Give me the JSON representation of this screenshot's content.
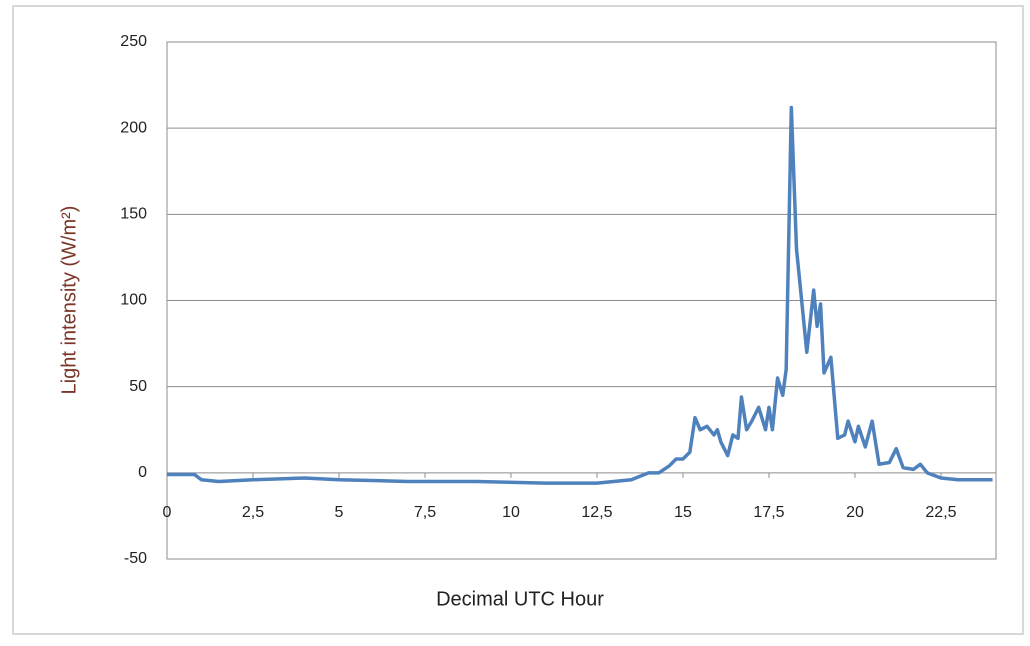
{
  "chart_data": {
    "type": "line",
    "x_label": "Decimal UTC Hour",
    "y_label": "Light intensity (W/m²)",
    "xlim": [
      0,
      24.1
    ],
    "xticks": [
      0,
      {
        "value": 2.5,
        "label": "2,5"
      },
      5,
      {
        "value": 7.5,
        "label": "7,5"
      },
      10,
      {
        "value": 12.5,
        "label": "12,5"
      },
      15,
      {
        "value": 17.5,
        "label": "17,5"
      },
      20,
      {
        "value": 22.5,
        "label": "22,5"
      }
    ],
    "ylim": [
      -50,
      250
    ],
    "yticks": [
      -50,
      0,
      50,
      100,
      150,
      200,
      250
    ],
    "grid": true,
    "series": [
      {
        "color": "#4f81bd",
        "x": [
          0,
          0.5,
          0.8,
          1.0,
          1.5,
          2.5,
          4,
          5,
          7,
          9,
          11,
          12.5,
          13.5,
          14,
          14.3,
          14.6,
          14.8,
          15.0,
          15.2,
          15.35,
          15.5,
          15.7,
          15.9,
          16.0,
          16.1,
          16.3,
          16.45,
          16.6,
          16.7,
          16.85,
          17.0,
          17.2,
          17.4,
          17.5,
          17.6,
          17.75,
          17.9,
          18.0,
          18.15,
          18.3,
          18.45,
          18.6,
          18.8,
          18.9,
          19.0,
          19.1,
          19.3,
          19.5,
          19.7,
          19.8,
          20.0,
          20.1,
          20.3,
          20.5,
          20.7,
          21.0,
          21.2,
          21.4,
          21.7,
          21.9,
          22.1,
          22.5,
          23,
          24
        ],
        "values": [
          -1,
          -1,
          -1,
          -4,
          -5,
          -4,
          -3,
          -4,
          -5,
          -5,
          -6,
          -6,
          -4,
          0,
          0,
          4,
          8,
          8,
          12,
          32,
          25,
          27,
          22,
          25,
          18,
          10,
          22,
          20,
          44,
          25,
          30,
          38,
          25,
          38,
          25,
          55,
          45,
          60,
          212,
          130,
          100,
          70,
          106,
          85,
          98,
          58,
          67,
          20,
          22,
          30,
          18,
          27,
          15,
          30,
          5,
          6,
          14,
          3,
          2,
          5,
          0,
          -3,
          -4,
          -4
        ]
      }
    ]
  }
}
